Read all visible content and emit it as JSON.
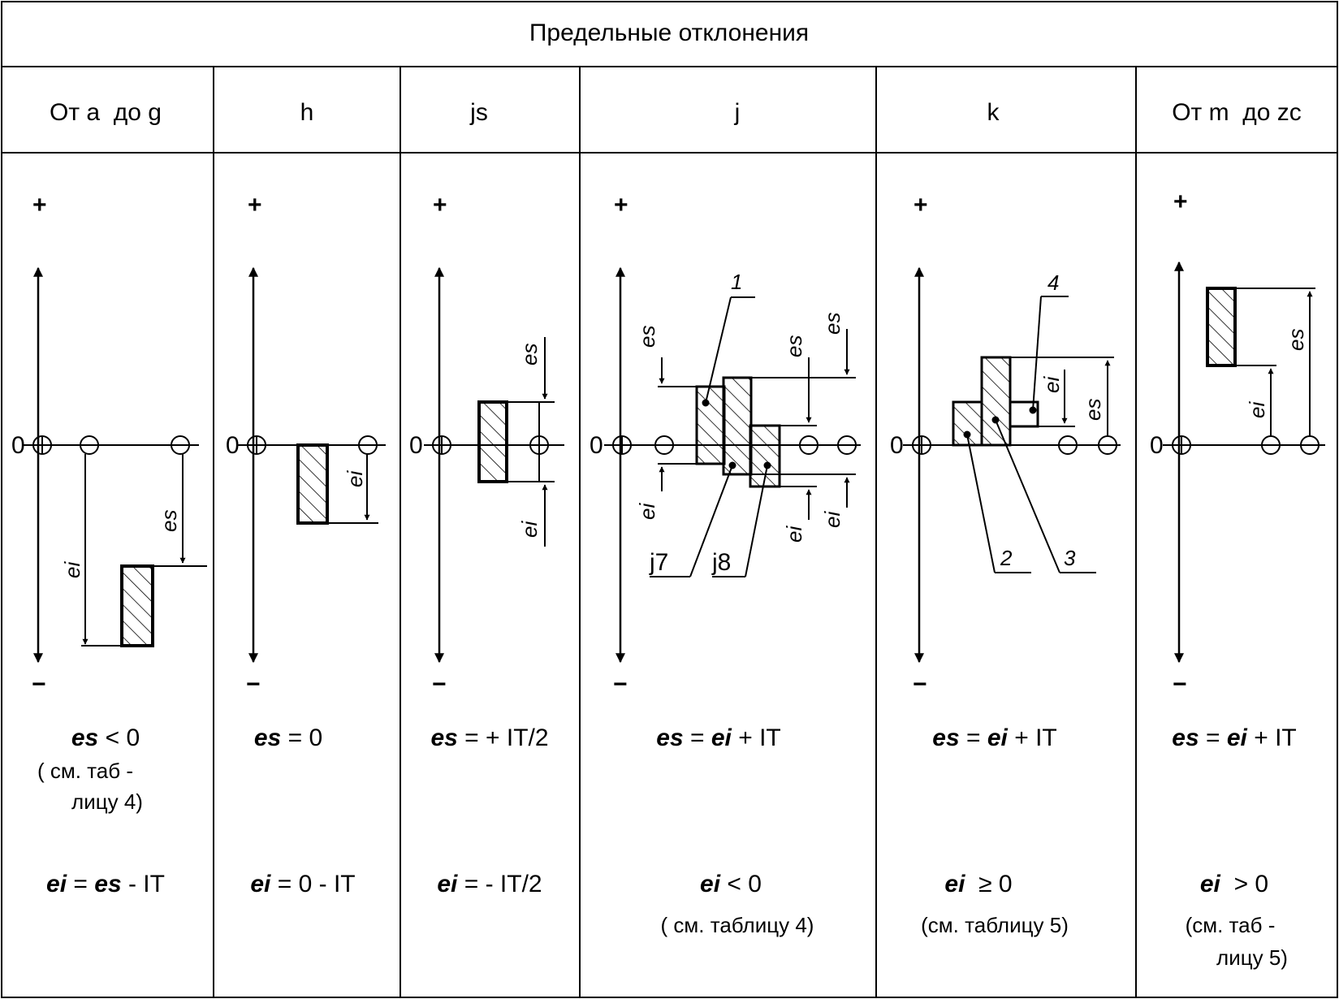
{
  "title": "Предельные отклонения",
  "columns": [
    {
      "id": "a-g",
      "header": "От a  до g",
      "es_formula": {
        "var": "es",
        "rest": " < 0"
      },
      "es_note": [
        "( см. таб -",
        "лицу 4)"
      ],
      "ei_formula": {
        "var": "ei",
        "mid": " = ",
        "var2": "es",
        "rest": " - IT"
      },
      "ei_note": []
    },
    {
      "id": "h",
      "header": "h",
      "es_formula": {
        "var": "es",
        "rest": " = 0"
      },
      "es_note": [],
      "ei_formula": {
        "var": "ei",
        "mid": " = 0 - IT",
        "var2": "",
        "rest": ""
      },
      "ei_note": []
    },
    {
      "id": "js",
      "header": "js",
      "es_formula": {
        "var": "es",
        "rest": " = + IT/2"
      },
      "es_note": [],
      "ei_formula": {
        "var": "ei",
        "mid": " = - IT/2",
        "var2": "",
        "rest": ""
      },
      "ei_note": []
    },
    {
      "id": "j",
      "header": "j",
      "es_formula": {
        "var": "es",
        "mid": " = ",
        "var2": "ei",
        "rest": " + IT"
      },
      "es_note": [],
      "ei_formula": {
        "var": "ei",
        "mid": " < 0",
        "var2": "",
        "rest": ""
      },
      "ei_note": [
        "( см. таблицу 4)"
      ]
    },
    {
      "id": "k",
      "header": "k",
      "es_formula": {
        "var": "es",
        "mid": " = ",
        "var2": "ei",
        "rest": " + IT"
      },
      "es_note": [],
      "ei_formula": {
        "var": "ei",
        "mid": "  ≥ 0",
        "var2": "",
        "rest": ""
      },
      "ei_note": [
        "(см. таблицу 5)"
      ]
    },
    {
      "id": "m-zc",
      "header": "От m  до zc",
      "es_formula": {
        "var": "es",
        "mid": " = ",
        "var2": "ei",
        "rest": " + IT"
      },
      "es_note": [],
      "ei_formula": {
        "var": "ei",
        "mid": "  > 0",
        "var2": "",
        "rest": ""
      },
      "ei_note": [
        "(см. таб -",
        "лицу 5)"
      ]
    }
  ],
  "axis": {
    "plus": "+",
    "minus": "−",
    "zero": "0"
  },
  "labels": {
    "es": "es",
    "ei": "ei",
    "n1": "1",
    "n2": "2",
    "n3": "3",
    "n4": "4",
    "j7": "j7",
    "j8": "j8"
  }
}
